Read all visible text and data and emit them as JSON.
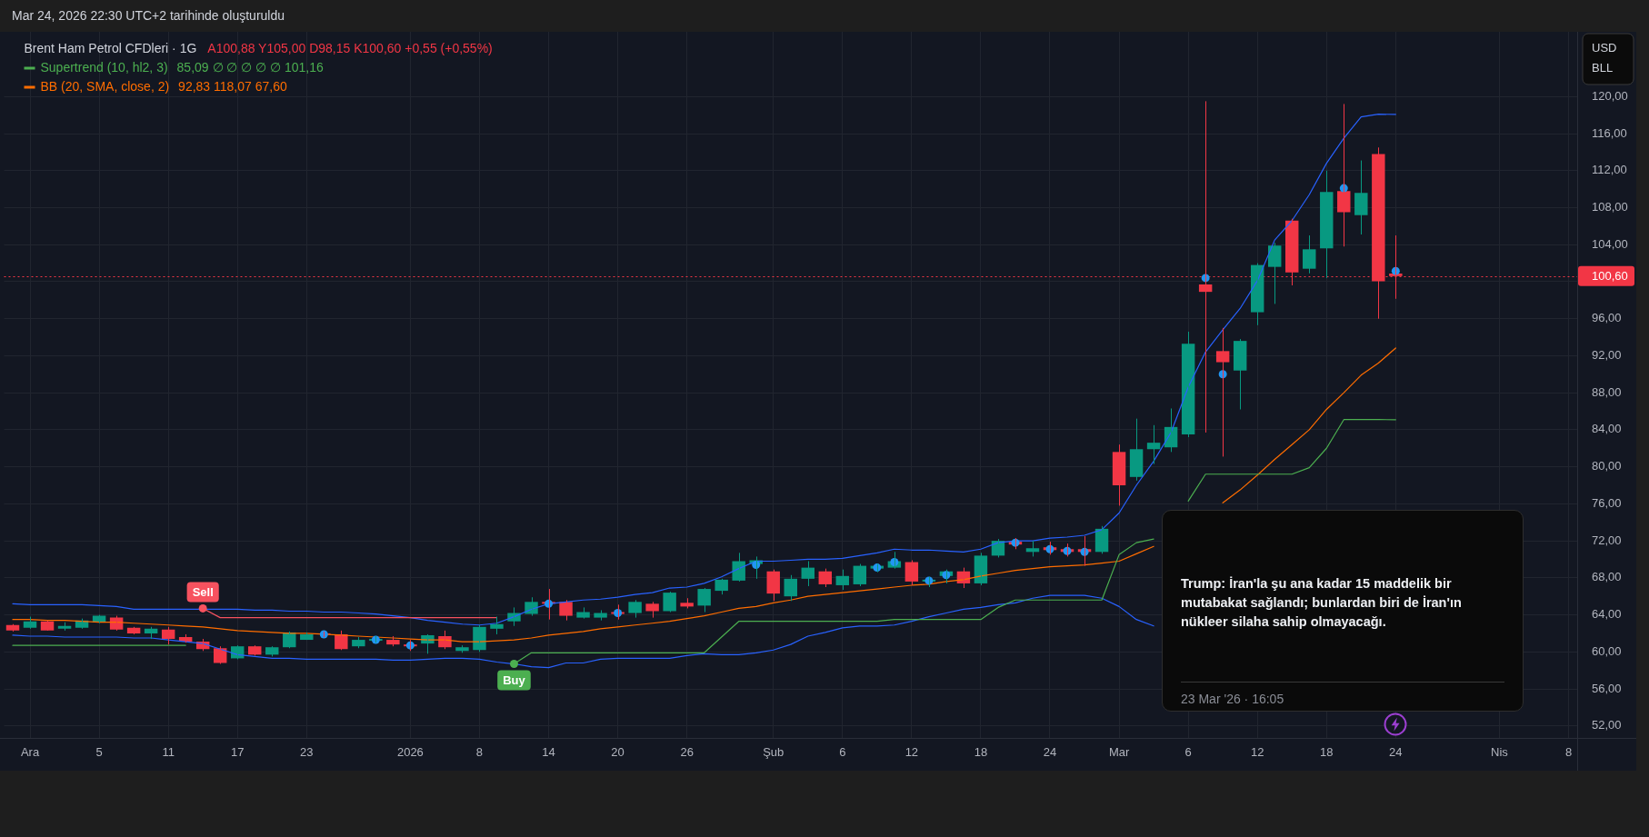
{
  "chart_data": {
    "type": "candlestick",
    "title": "Brent Ham Petrol CFDleri · 1G",
    "ylabel": "USD BLL",
    "annotations": [
      "Mar 24, 2026 22:30 UTC+2 tarihinde oluşturuldu",
      "A100,88 Y105,00 D98,15 K100,60 +0,55 (+0,55%)",
      "85,09 ∅ ∅ ∅ ∅ ∅ 101,16",
      "92,83 118,07 67,60",
      "Trump: İran'la şu ana kadar 15 maddelik bir mutabakat sağlandı; bunlardan biri de İran'ın nükleer silaha sahip olmayacağı.",
      "23 Mar '26 · 16:05"
    ],
    "categories": [
      null,
      "Ara",
      null,
      null,
      null,
      "5",
      null,
      null,
      null,
      "11",
      null,
      null,
      null,
      "17",
      null,
      null,
      null,
      "23",
      null,
      null,
      null,
      null,
      null,
      "2026",
      null,
      null,
      null,
      "8",
      null,
      null,
      null,
      "14",
      null,
      null,
      null,
      "20",
      null,
      null,
      null,
      "26",
      null,
      null,
      null,
      null,
      "Şub",
      null,
      null,
      null,
      "6",
      null,
      null,
      null,
      "12",
      null,
      null,
      null,
      "18",
      null,
      null,
      null,
      "24",
      null,
      null,
      null,
      "Mar",
      null,
      null,
      null,
      "6",
      null,
      null,
      null,
      "12",
      null,
      null,
      null,
      "18",
      null,
      null,
      null,
      "24",
      null,
      null,
      null,
      null,
      null,
      "Nis",
      null,
      null,
      null,
      "8"
    ],
    "ohlc": [
      [
        62.9,
        63.0,
        62.2,
        62.3
      ],
      [
        62.6,
        63.8,
        62.5,
        63.3
      ],
      [
        63.3,
        63.4,
        62.3,
        62.3
      ],
      [
        62.5,
        63.2,
        62.3,
        62.8
      ],
      [
        62.6,
        63.6,
        62.5,
        63.4
      ],
      [
        63.2,
        64.0,
        63.1,
        63.9
      ],
      [
        63.7,
        63.9,
        62.3,
        62.4
      ],
      [
        62.6,
        62.7,
        61.9,
        62.0
      ],
      [
        62.0,
        62.7,
        61.4,
        62.5
      ],
      [
        62.4,
        62.7,
        60.8,
        61.4
      ],
      [
        61.6,
        61.9,
        61.0,
        61.1
      ],
      [
        61.1,
        61.4,
        60.1,
        60.3
      ],
      [
        60.4,
        60.6,
        58.7,
        58.8
      ],
      [
        59.3,
        60.7,
        59.2,
        60.6
      ],
      [
        60.6,
        60.7,
        59.6,
        59.7
      ],
      [
        59.7,
        60.6,
        59.5,
        60.5
      ],
      [
        60.5,
        62.2,
        60.4,
        62.1
      ],
      [
        61.3,
        62.1,
        61.3,
        61.9
      ],
      [
        62.0,
        62.2,
        61.6,
        61.9
      ],
      [
        61.9,
        62.3,
        60.2,
        60.3
      ],
      [
        60.6,
        61.6,
        60.4,
        61.3
      ],
      [
        61.2,
        61.7,
        61.0,
        61.4
      ],
      [
        61.3,
        61.7,
        60.6,
        60.8
      ],
      [
        60.8,
        61.3,
        60.1,
        60.6
      ],
      [
        60.9,
        61.9,
        59.8,
        61.8
      ],
      [
        61.7,
        62.3,
        60.3,
        60.5
      ],
      [
        60.1,
        60.7,
        59.9,
        60.5
      ],
      [
        60.2,
        62.9,
        60.0,
        62.7
      ],
      [
        62.5,
        63.8,
        61.9,
        63.0
      ],
      [
        63.3,
        64.8,
        62.8,
        64.2
      ],
      [
        64.1,
        65.9,
        63.9,
        65.4
      ],
      [
        65.4,
        66.8,
        63.5,
        65.2
      ],
      [
        65.4,
        65.6,
        63.4,
        63.9
      ],
      [
        63.7,
        64.8,
        63.6,
        64.3
      ],
      [
        63.7,
        64.5,
        63.4,
        64.2
      ],
      [
        64.3,
        65.1,
        63.5,
        64.1
      ],
      [
        64.2,
        65.6,
        63.7,
        65.4
      ],
      [
        65.2,
        65.4,
        63.7,
        64.4
      ],
      [
        64.4,
        66.5,
        64.3,
        66.4
      ],
      [
        65.3,
        65.8,
        64.7,
        64.9
      ],
      [
        65.0,
        66.9,
        64.3,
        66.8
      ],
      [
        66.6,
        67.9,
        66.2,
        67.8
      ],
      [
        67.7,
        70.7,
        67.6,
        69.8
      ],
      [
        69.5,
        70.3,
        67.9,
        69.9
      ],
      [
        68.7,
        68.9,
        65.5,
        66.3
      ],
      [
        66.0,
        68.3,
        65.5,
        67.9
      ],
      [
        67.9,
        69.8,
        67.1,
        69.1
      ],
      [
        68.7,
        69.0,
        67.0,
        67.3
      ],
      [
        67.2,
        68.9,
        66.7,
        68.2
      ],
      [
        67.3,
        69.5,
        67.1,
        69.3
      ],
      [
        69.0,
        69.5,
        68.6,
        69.3
      ],
      [
        69.1,
        70.8,
        69.0,
        69.8
      ],
      [
        69.7,
        69.9,
        67.2,
        67.6
      ],
      [
        67.6,
        68.1,
        67.0,
        67.8
      ],
      [
        68.2,
        68.9,
        67.4,
        68.7
      ],
      [
        68.7,
        69.1,
        66.9,
        67.4
      ],
      [
        67.4,
        70.7,
        67.2,
        70.4
      ],
      [
        70.4,
        72.2,
        70.2,
        72.0
      ],
      [
        71.9,
        72.3,
        71.1,
        71.6
      ],
      [
        70.8,
        72.0,
        70.3,
        71.2
      ],
      [
        71.3,
        71.9,
        70.5,
        71.0
      ],
      [
        71.1,
        71.7,
        70.3,
        70.8
      ],
      [
        71.1,
        72.5,
        69.3,
        70.8
      ],
      [
        70.8,
        73.6,
        70.6,
        73.3
      ],
      [
        81.6,
        82.4,
        75.8,
        78.0
      ],
      [
        78.9,
        85.2,
        78.5,
        81.9
      ],
      [
        81.9,
        84.5,
        80.3,
        82.6
      ],
      [
        82.1,
        86.3,
        81.6,
        84.3
      ],
      [
        83.5,
        94.6,
        83.2,
        93.3
      ],
      [
        99.7,
        119.5,
        83.7,
        98.9
      ],
      [
        92.5,
        95.0,
        81.1,
        91.3
      ],
      [
        90.4,
        93.8,
        86.2,
        93.6
      ],
      [
        96.7,
        102.0,
        95.3,
        101.8
      ],
      [
        101.6,
        104.2,
        97.6,
        103.9
      ],
      [
        106.6,
        106.8,
        99.6,
        101.0
      ],
      [
        101.4,
        105.0,
        100.9,
        103.5
      ],
      [
        103.6,
        112.0,
        100.4,
        109.7
      ],
      [
        109.8,
        119.2,
        103.8,
        107.5
      ],
      [
        107.2,
        113.1,
        105.1,
        109.6
      ],
      [
        113.8,
        114.5,
        96.0,
        100.05
      ],
      [
        100.88,
        105.0,
        98.15,
        100.6
      ],
      null,
      null,
      null,
      null,
      null,
      null,
      null,
      null,
      null,
      null
    ],
    "colors": [
      "#f23645",
      "#089981",
      "#f23645",
      "#089981",
      "#089981",
      "#089981",
      "#f23645",
      "#f23645",
      "#089981",
      "#f23645",
      "#f23645",
      "#f23645",
      "#f23645",
      "#089981",
      "#f23645",
      "#089981",
      "#089981",
      "#089981",
      "#f23645",
      "#f23645",
      "#089981",
      "#089981",
      "#f23645",
      "#f23645",
      "#089981",
      "#f23645",
      "#089981",
      "#089981",
      "#089981",
      "#089981",
      "#089981",
      "#f23645",
      "#f23645",
      "#089981",
      "#089981",
      "#f23645",
      "#089981",
      "#f23645",
      "#089981",
      "#f23645",
      "#089981",
      "#089981",
      "#089981",
      "#089981",
      "#f23645",
      "#089981",
      "#089981",
      "#f23645",
      "#089981",
      "#089981",
      "#089981",
      "#089981",
      "#f23645",
      "#089981",
      "#089981",
      "#f23645",
      "#089981",
      "#089981",
      "#f23645",
      "#089981",
      "#f23645",
      "#f23645",
      "#f23645",
      "#089981",
      "#f23645",
      "#089981",
      "#089981",
      "#089981",
      "#089981",
      "#f23645",
      "#f23645",
      "#089981",
      "#089981",
      "#089981",
      "#f23645",
      "#089981",
      "#089981",
      "#f23645",
      "#089981",
      "#f23645",
      "#f23645",
      null,
      null,
      null,
      null,
      null,
      null,
      null,
      null,
      null,
      null
    ],
    "series": [
      {
        "type": "line",
        "name": "Supertrend (10, hl2, 3)",
        "color": "#4caf50",
        "values": [
          60.7,
          60.7,
          60.7,
          60.7,
          60.7,
          60.7,
          60.7,
          60.7,
          60.7,
          60.7,
          60.7,
          null,
          null,
          null,
          null,
          null,
          null,
          null,
          null,
          null,
          null,
          null,
          null,
          null,
          null,
          null,
          null,
          null,
          null,
          58.7,
          59.9,
          59.9,
          59.9,
          59.9,
          59.9,
          59.9,
          59.9,
          59.9,
          59.9,
          59.9,
          59.9,
          61.6,
          63.3,
          63.3,
          63.3,
          63.3,
          63.3,
          63.3,
          63.3,
          63.3,
          63.3,
          63.5,
          63.5,
          63.5,
          63.5,
          63.5,
          63.5,
          64.8,
          65.6,
          65.6,
          65.6,
          65.6,
          65.6,
          65.6,
          70.5,
          71.8,
          72.2,
          null,
          76.3,
          79.2,
          79.2,
          79.2,
          79.2,
          79.2,
          79.2,
          79.9,
          82.0,
          85.1,
          85.1,
          85.1,
          85.09,
          null,
          null,
          null,
          null,
          null,
          null,
          null,
          null,
          null,
          null
        ]
      },
      {
        "type": "line",
        "color": "#f7525f",
        "values": [
          null,
          null,
          null,
          null,
          null,
          null,
          null,
          null,
          null,
          null,
          null,
          64.7,
          63.7,
          63.7,
          63.7,
          63.7,
          63.7,
          63.7,
          63.7,
          63.7,
          63.7,
          63.7,
          63.7,
          63.7,
          63.7,
          63.7,
          63.7,
          63.7,
          63.7,
          null,
          null,
          null,
          null,
          null,
          null,
          null,
          null,
          null,
          null,
          null,
          null,
          null,
          null,
          null,
          null,
          null,
          null,
          null,
          null,
          null,
          null,
          null,
          null,
          null,
          null,
          null,
          null,
          null,
          null,
          null,
          null,
          null,
          null,
          null,
          null,
          null,
          null,
          null,
          null,
          null,
          null,
          null,
          null,
          null,
          null,
          null,
          null,
          null,
          null,
          null,
          null,
          null,
          null,
          null,
          null,
          null,
          null,
          null,
          null,
          null,
          null
        ]
      },
      {
        "type": "scatter",
        "marker": "circle",
        "color": "#2196f3",
        "values": [
          null,
          null,
          null,
          null,
          null,
          null,
          null,
          null,
          null,
          null,
          null,
          null,
          null,
          null,
          null,
          null,
          null,
          null,
          61.9,
          null,
          null,
          61.3,
          null,
          60.7,
          null,
          null,
          null,
          null,
          null,
          null,
          null,
          65.2,
          null,
          null,
          null,
          64.2,
          null,
          null,
          null,
          null,
          null,
          null,
          null,
          69.4,
          null,
          null,
          null,
          null,
          null,
          null,
          69.1,
          69.7,
          null,
          67.7,
          68.3,
          null,
          null,
          null,
          71.8,
          null,
          71.1,
          70.9,
          70.8,
          null,
          null,
          null,
          null,
          null,
          null,
          100.4,
          90.0,
          null,
          null,
          null,
          null,
          null,
          null,
          110.1,
          null,
          null,
          101.16,
          null,
          null,
          null,
          null,
          null,
          null,
          null,
          null,
          null,
          null
        ]
      },
      {
        "type": "scatter",
        "marker": "circle",
        "name": "Sell",
        "color": "#f7525f",
        "values": [
          null,
          null,
          null,
          null,
          null,
          null,
          null,
          null,
          null,
          null,
          null,
          64.7,
          null,
          null,
          null,
          null,
          null,
          null,
          null,
          null,
          null,
          null,
          null,
          null,
          null,
          null,
          null,
          null,
          null,
          null,
          null,
          null,
          null,
          null,
          null,
          null,
          null,
          null,
          null,
          null,
          null,
          null,
          null,
          null,
          null,
          null,
          null,
          null,
          null,
          null,
          null,
          null,
          null,
          null,
          null,
          null,
          null,
          null,
          null,
          null,
          null,
          null,
          null,
          null,
          null,
          null,
          null,
          null,
          null,
          null,
          null,
          null,
          null,
          null,
          null,
          null,
          null,
          null,
          null,
          null,
          null,
          null,
          null,
          null,
          null,
          null,
          null,
          null,
          null,
          null,
          null
        ]
      },
      {
        "type": "scatter",
        "marker": "circle",
        "name": "Buy",
        "color": "#4caf50",
        "values": [
          null,
          null,
          null,
          null,
          null,
          null,
          null,
          null,
          null,
          null,
          null,
          null,
          null,
          null,
          null,
          null,
          null,
          null,
          null,
          null,
          null,
          null,
          null,
          null,
          null,
          null,
          null,
          null,
          null,
          58.7,
          null,
          null,
          null,
          null,
          null,
          null,
          null,
          null,
          null,
          null,
          null,
          null,
          null,
          null,
          null,
          null,
          null,
          null,
          null,
          null,
          null,
          null,
          null,
          null,
          null,
          null,
          null,
          null,
          null,
          null,
          null,
          null,
          null,
          null,
          null,
          null,
          null,
          null,
          null,
          null,
          null,
          null,
          null,
          null,
          null,
          null,
          null,
          null,
          null,
          null,
          null,
          null,
          null,
          null,
          null,
          null,
          null,
          null,
          null,
          null,
          null
        ]
      },
      {
        "type": "line",
        "name": "BB (20, SMA, close, 2)",
        "color": "#ff6d00",
        "values": [
          63.5,
          63.5,
          63.4,
          63.4,
          63.3,
          63.2,
          63.2,
          63.1,
          63.0,
          62.9,
          62.8,
          62.7,
          62.5,
          62.3,
          62.2,
          62.1,
          62.0,
          62.0,
          61.9,
          61.8,
          61.7,
          61.6,
          61.5,
          61.4,
          61.3,
          61.3,
          61.1,
          61.1,
          61.2,
          61.3,
          61.5,
          61.8,
          62.0,
          62.2,
          62.5,
          62.7,
          62.9,
          63.1,
          63.3,
          63.6,
          63.9,
          64.3,
          64.7,
          64.9,
          65.3,
          65.6,
          66.0,
          66.2,
          66.4,
          66.6,
          66.8,
          67.0,
          67.2,
          67.3,
          67.6,
          67.8,
          68.2,
          68.5,
          68.8,
          69.0,
          69.2,
          69.3,
          69.4,
          69.6,
          69.8,
          70.6,
          71.4,
          null,
          null,
          null,
          76.1,
          77.5,
          79.1,
          80.8,
          82.4,
          84.0,
          86.2,
          88.0,
          89.9,
          91.2,
          92.83,
          null,
          null,
          null,
          null,
          null,
          null,
          null,
          null,
          null,
          null
        ]
      },
      {
        "type": "line",
        "color": "#2962ff",
        "values": [
          65.2,
          65.1,
          65.1,
          65.1,
          65.1,
          65.0,
          64.9,
          64.6,
          64.6,
          64.6,
          64.6,
          64.6,
          64.6,
          64.6,
          64.5,
          64.5,
          64.4,
          64.4,
          64.3,
          64.3,
          64.2,
          64.1,
          63.9,
          63.7,
          63.4,
          63.2,
          63.0,
          62.9,
          63.1,
          63.8,
          64.6,
          65.2,
          65.4,
          65.6,
          65.7,
          65.9,
          66.2,
          66.4,
          66.9,
          67.0,
          67.4,
          68.1,
          69.0,
          69.8,
          69.8,
          69.9,
          70.0,
          70.0,
          70.1,
          70.4,
          70.7,
          71.1,
          71.0,
          71.0,
          70.9,
          70.8,
          71.1,
          71.8,
          72.0,
          72.0,
          72.3,
          72.4,
          72.6,
          73.2,
          75.0,
          78.0,
          80.6,
          83.7,
          88.6,
          92.4,
          94.8,
          97.1,
          100.1,
          104.5,
          106.6,
          109.4,
          112.8,
          115.5,
          117.8,
          118.1,
          118.07,
          null,
          null,
          null,
          null,
          null,
          null,
          null,
          null,
          null,
          null
        ]
      },
      {
        "type": "line",
        "color": "#2962ff",
        "values": [
          61.8,
          61.7,
          61.7,
          61.6,
          61.6,
          61.6,
          61.6,
          61.5,
          61.5,
          61.3,
          61.1,
          60.9,
          60.3,
          59.7,
          59.5,
          59.3,
          59.3,
          59.2,
          59.2,
          59.2,
          59.2,
          59.2,
          59.1,
          59.1,
          59.2,
          59.3,
          59.3,
          59.2,
          58.9,
          58.7,
          58.4,
          58.3,
          58.8,
          58.8,
          59.2,
          59.3,
          59.3,
          59.3,
          59.3,
          59.6,
          59.8,
          59.7,
          59.7,
          59.9,
          60.2,
          60.8,
          61.7,
          62.1,
          62.6,
          62.8,
          62.8,
          62.9,
          63.3,
          63.8,
          64.2,
          64.6,
          64.8,
          65.1,
          65.3,
          65.8,
          66.1,
          66.1,
          66.1,
          65.8,
          64.9,
          63.5,
          62.8,
          null,
          null,
          null,
          null,
          null,
          null,
          null,
          null,
          null,
          null,
          null,
          null,
          null,
          null,
          null,
          null,
          null,
          null,
          null,
          null,
          null,
          null,
          null,
          null
        ]
      }
    ],
    "ylim": [
      50.7,
      127.0
    ],
    "yticks": [
      {
        "value": 52,
        "label": "52,00"
      },
      {
        "value": 56,
        "label": "56,00"
      },
      {
        "value": 60,
        "label": "60,00"
      },
      {
        "value": 64,
        "label": "64,00"
      },
      {
        "value": 68,
        "label": "68,00"
      },
      {
        "value": 72,
        "label": "72,00"
      },
      {
        "value": 76,
        "label": "76,00"
      },
      {
        "value": 80,
        "label": "80,00"
      },
      {
        "value": 84,
        "label": "84,00"
      },
      {
        "value": 88,
        "label": "88,00"
      },
      {
        "value": 92,
        "label": "92,00"
      },
      {
        "value": 96,
        "label": "96,00"
      },
      {
        "value": 100,
        "label": null
      },
      {
        "value": 104,
        "label": "104,00"
      },
      {
        "value": 108,
        "label": "108,00"
      },
      {
        "value": 112,
        "label": "112,00"
      },
      {
        "value": 116,
        "label": "116,00"
      },
      {
        "value": 120,
        "label": "120,00"
      }
    ],
    "ref_lines": [
      {
        "axis": "y",
        "value": 100.6,
        "label": "100,60",
        "color": "#f23645",
        "line_style": "dotted"
      }
    ],
    "grid": true,
    "legend": "top left"
  }
}
